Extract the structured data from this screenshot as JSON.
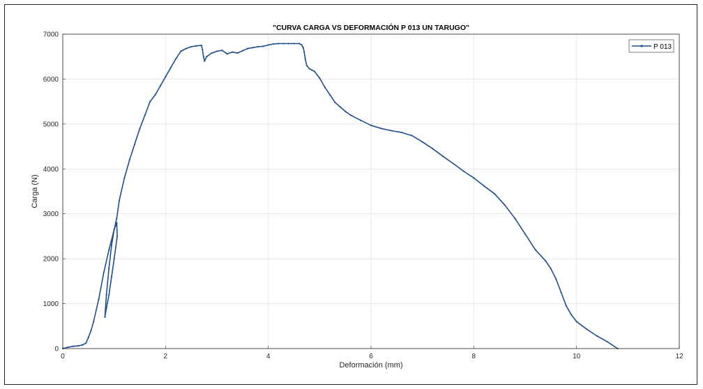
{
  "chart_data": {
    "type": "line",
    "title": "\"CURVA CARGA VS DEFORMACIÓN P 013 UN TARUGO\"",
    "xlabel": "Deformación (mm)",
    "ylabel": "Carga (N)",
    "xlim": [
      0,
      12
    ],
    "ylim": [
      0,
      7000
    ],
    "xticks": [
      0,
      2,
      4,
      6,
      8,
      10,
      12
    ],
    "yticks": [
      0,
      1000,
      2000,
      3000,
      4000,
      5000,
      6000,
      7000
    ],
    "grid": true,
    "legend_position": "top-right",
    "series": [
      {
        "name": "P 013",
        "color": "#1f4e8c",
        "x": [
          0,
          0.1,
          0.2,
          0.3,
          0.38,
          0.45,
          0.5,
          0.55,
          0.6,
          0.7,
          0.8,
          0.9,
          1.0,
          1.05,
          1.06,
          1.0,
          0.95,
          0.9,
          0.85,
          0.82,
          0.85,
          0.9,
          0.95,
          1.0,
          1.03,
          1.05,
          1.1,
          1.2,
          1.3,
          1.4,
          1.5,
          1.6,
          1.7,
          1.8,
          1.9,
          2.0,
          2.1,
          2.2,
          2.3,
          2.35,
          2.4,
          2.5,
          2.6,
          2.7,
          2.72,
          2.74,
          2.76,
          2.8,
          2.9,
          3.0,
          3.1,
          3.2,
          3.3,
          3.4,
          3.5,
          3.6,
          3.7,
          3.8,
          3.9,
          4.0,
          4.1,
          4.2,
          4.3,
          4.4,
          4.5,
          4.6,
          4.65,
          4.68,
          4.7,
          4.72,
          4.75,
          4.8,
          4.85,
          4.9,
          5.0,
          5.1,
          5.2,
          5.3,
          5.4,
          5.5,
          5.6,
          5.8,
          6.0,
          6.2,
          6.4,
          6.6,
          6.8,
          7.0,
          7.2,
          7.4,
          7.6,
          7.8,
          8.0,
          8.2,
          8.4,
          8.6,
          8.8,
          9.0,
          9.2,
          9.4,
          9.5,
          9.6,
          9.7,
          9.8,
          9.9,
          10.0,
          10.2,
          10.4,
          10.6,
          10.8
        ],
        "y": [
          0,
          30,
          50,
          60,
          80,
          120,
          250,
          400,
          600,
          1100,
          1700,
          2200,
          2650,
          2800,
          2500,
          2000,
          1600,
          1200,
          900,
          700,
          1200,
          1800,
          2300,
          2650,
          2800,
          2900,
          3300,
          3800,
          4200,
          4550,
          4900,
          5200,
          5500,
          5650,
          5850,
          6050,
          6250,
          6450,
          6620,
          6650,
          6680,
          6720,
          6740,
          6750,
          6650,
          6500,
          6400,
          6500,
          6580,
          6620,
          6640,
          6560,
          6600,
          6580,
          6630,
          6680,
          6700,
          6720,
          6730,
          6760,
          6780,
          6790,
          6790,
          6790,
          6790,
          6790,
          6760,
          6700,
          6600,
          6450,
          6300,
          6230,
          6200,
          6170,
          6020,
          5820,
          5650,
          5480,
          5380,
          5280,
          5200,
          5080,
          4970,
          4900,
          4850,
          4810,
          4740,
          4600,
          4450,
          4280,
          4120,
          3950,
          3800,
          3620,
          3450,
          3200,
          2900,
          2550,
          2200,
          1950,
          1780,
          1550,
          1250,
          950,
          750,
          600,
          430,
          280,
          150,
          0
        ]
      }
    ]
  }
}
